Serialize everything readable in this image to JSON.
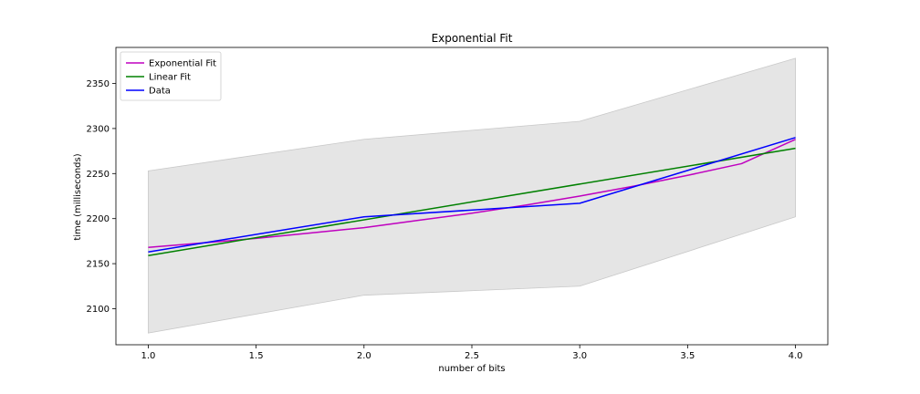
{
  "chart_data": {
    "type": "line",
    "title": "Exponential Fit",
    "xlabel": "number of bits",
    "ylabel": "time (milliseconds)",
    "xlim": [
      0.85,
      4.15
    ],
    "ylim": [
      2060,
      2390
    ],
    "x_ticks": [
      1.0,
      1.5,
      2.0,
      2.5,
      3.0,
      3.5,
      4.0
    ],
    "x_tick_labels": [
      "1.0",
      "1.5",
      "2.0",
      "2.5",
      "3.0",
      "3.5",
      "4.0"
    ],
    "y_ticks": [
      2100,
      2150,
      2200,
      2250,
      2300,
      2350
    ],
    "y_tick_labels": [
      "2100",
      "2150",
      "2200",
      "2250",
      "2300",
      "2350"
    ],
    "grid": false,
    "legend_position": "upper-left",
    "series": [
      {
        "name": "Exponential Fit",
        "color": "#bf00bf",
        "x": [
          1.0,
          1.25,
          1.5,
          1.75,
          2.0,
          2.25,
          2.5,
          2.75,
          3.0,
          3.25,
          3.5,
          3.75,
          4.0
        ],
        "y": [
          2168,
          2173,
          2178,
          2184,
          2190,
          2198,
          2206,
          2215,
          2225,
          2236,
          2248,
          2261,
          2288
        ]
      },
      {
        "name": "Linear Fit",
        "color": "#008000",
        "x": [
          1.0,
          4.0
        ],
        "y": [
          2159,
          2278
        ]
      },
      {
        "name": "Data",
        "color": "#0000ff",
        "x": [
          1.0,
          2.0,
          3.0,
          4.0
        ],
        "y": [
          2163,
          2202,
          2217,
          2290
        ]
      }
    ],
    "band": {
      "color": "#d3d3d3",
      "x": [
        1.0,
        2.0,
        3.0,
        4.0
      ],
      "upper": [
        2253,
        2288,
        2308,
        2378
      ],
      "lower": [
        2073,
        2115,
        2125,
        2202
      ]
    }
  }
}
